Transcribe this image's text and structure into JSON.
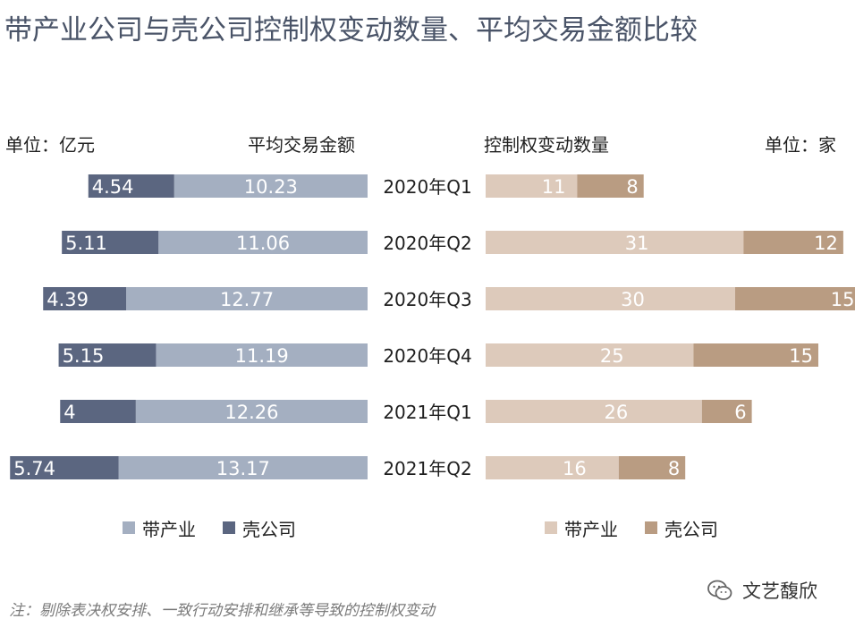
{
  "title": "带产业公司与壳公司控制权变动数量、平均交易金额比较",
  "left_unit": "单位：亿元",
  "left_header": "平均交易金额",
  "right_header": "控制权变动数量",
  "right_unit": "单位：家",
  "note": "注：剔除表决权安排、一致行动安排和继承等导致的控制权变动",
  "brand": "文艺馥欣",
  "colors": {
    "left_industry": "#a4afc1",
    "left_shell": "#5b6680",
    "right_industry": "#ddcabb",
    "right_shell": "#b99c82"
  },
  "legend_left": [
    {
      "label": "带产业",
      "color": "#a4afc1"
    },
    {
      "label": "壳公司",
      "color": "#5b6680"
    }
  ],
  "legend_right": [
    {
      "label": "带产业",
      "color": "#ddcabb"
    },
    {
      "label": "壳公司",
      "color": "#b99c82"
    }
  ],
  "chart_data": [
    {
      "type": "bar",
      "orientation": "horizontal",
      "stacked": true,
      "direction": "right-to-left",
      "title": "平均交易金额",
      "unit": "亿元",
      "categories": [
        "2020年Q1",
        "2020年Q2",
        "2020年Q3",
        "2020年Q4",
        "2021年Q1",
        "2021年Q2"
      ],
      "series": [
        {
          "name": "带产业",
          "values": [
            10.23,
            11.06,
            12.77,
            11.19,
            12.26,
            13.17
          ],
          "labels": [
            "10.23",
            "11.06",
            "12.77",
            "11.19",
            "12.26",
            "13.17"
          ]
        },
        {
          "name": "壳公司",
          "values": [
            4.54,
            5.11,
            4.39,
            5.15,
            4,
            5.74
          ],
          "labels": [
            "4.54",
            "5.11",
            "4.39",
            "5.15",
            "4",
            "5.74"
          ]
        }
      ],
      "legend": "bottom"
    },
    {
      "type": "bar",
      "orientation": "horizontal",
      "stacked": true,
      "direction": "left-to-right",
      "title": "控制权变动数量",
      "unit": "家",
      "categories": [
        "2020年Q1",
        "2020年Q2",
        "2020年Q3",
        "2020年Q4",
        "2021年Q1",
        "2021年Q2"
      ],
      "series": [
        {
          "name": "带产业",
          "values": [
            11,
            31,
            30,
            25,
            26,
            16
          ]
        },
        {
          "name": "壳公司",
          "values": [
            8,
            12,
            15,
            15,
            6,
            8
          ]
        }
      ],
      "legend": "bottom"
    }
  ]
}
